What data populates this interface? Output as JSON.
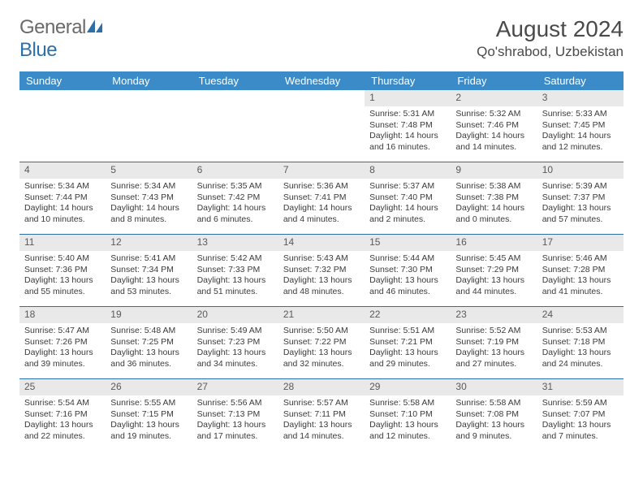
{
  "logo": {
    "text_left": "General",
    "text_right": "Blue"
  },
  "title": "August 2024",
  "location": "Qo'shrabod, Uzbekistan",
  "colors": {
    "header_bg": "#3b8bc8",
    "header_text": "#ffffff",
    "daynum_bg": "#e9e9e9",
    "rule": "#2f6fa8",
    "body_text": "#3a3a3a",
    "logo_gray": "#6a6a6a",
    "logo_blue": "#2f6fa8"
  },
  "typography": {
    "title_fontsize": 28,
    "location_fontsize": 17,
    "head_fontsize": 13,
    "daynum_fontsize": 12,
    "body_fontsize": 10.5
  },
  "day_headers": [
    "Sunday",
    "Monday",
    "Tuesday",
    "Wednesday",
    "Thursday",
    "Friday",
    "Saturday"
  ],
  "weeks": [
    [
      {
        "n": "",
        "sunrise": "",
        "sunset": "",
        "daylight": ""
      },
      {
        "n": "",
        "sunrise": "",
        "sunset": "",
        "daylight": ""
      },
      {
        "n": "",
        "sunrise": "",
        "sunset": "",
        "daylight": ""
      },
      {
        "n": "",
        "sunrise": "",
        "sunset": "",
        "daylight": ""
      },
      {
        "n": "1",
        "sunrise": "Sunrise: 5:31 AM",
        "sunset": "Sunset: 7:48 PM",
        "daylight": "Daylight: 14 hours and 16 minutes."
      },
      {
        "n": "2",
        "sunrise": "Sunrise: 5:32 AM",
        "sunset": "Sunset: 7:46 PM",
        "daylight": "Daylight: 14 hours and 14 minutes."
      },
      {
        "n": "3",
        "sunrise": "Sunrise: 5:33 AM",
        "sunset": "Sunset: 7:45 PM",
        "daylight": "Daylight: 14 hours and 12 minutes."
      }
    ],
    [
      {
        "n": "4",
        "sunrise": "Sunrise: 5:34 AM",
        "sunset": "Sunset: 7:44 PM",
        "daylight": "Daylight: 14 hours and 10 minutes."
      },
      {
        "n": "5",
        "sunrise": "Sunrise: 5:34 AM",
        "sunset": "Sunset: 7:43 PM",
        "daylight": "Daylight: 14 hours and 8 minutes."
      },
      {
        "n": "6",
        "sunrise": "Sunrise: 5:35 AM",
        "sunset": "Sunset: 7:42 PM",
        "daylight": "Daylight: 14 hours and 6 minutes."
      },
      {
        "n": "7",
        "sunrise": "Sunrise: 5:36 AM",
        "sunset": "Sunset: 7:41 PM",
        "daylight": "Daylight: 14 hours and 4 minutes."
      },
      {
        "n": "8",
        "sunrise": "Sunrise: 5:37 AM",
        "sunset": "Sunset: 7:40 PM",
        "daylight": "Daylight: 14 hours and 2 minutes."
      },
      {
        "n": "9",
        "sunrise": "Sunrise: 5:38 AM",
        "sunset": "Sunset: 7:38 PM",
        "daylight": "Daylight: 14 hours and 0 minutes."
      },
      {
        "n": "10",
        "sunrise": "Sunrise: 5:39 AM",
        "sunset": "Sunset: 7:37 PM",
        "daylight": "Daylight: 13 hours and 57 minutes."
      }
    ],
    [
      {
        "n": "11",
        "sunrise": "Sunrise: 5:40 AM",
        "sunset": "Sunset: 7:36 PM",
        "daylight": "Daylight: 13 hours and 55 minutes."
      },
      {
        "n": "12",
        "sunrise": "Sunrise: 5:41 AM",
        "sunset": "Sunset: 7:34 PM",
        "daylight": "Daylight: 13 hours and 53 minutes."
      },
      {
        "n": "13",
        "sunrise": "Sunrise: 5:42 AM",
        "sunset": "Sunset: 7:33 PM",
        "daylight": "Daylight: 13 hours and 51 minutes."
      },
      {
        "n": "14",
        "sunrise": "Sunrise: 5:43 AM",
        "sunset": "Sunset: 7:32 PM",
        "daylight": "Daylight: 13 hours and 48 minutes."
      },
      {
        "n": "15",
        "sunrise": "Sunrise: 5:44 AM",
        "sunset": "Sunset: 7:30 PM",
        "daylight": "Daylight: 13 hours and 46 minutes."
      },
      {
        "n": "16",
        "sunrise": "Sunrise: 5:45 AM",
        "sunset": "Sunset: 7:29 PM",
        "daylight": "Daylight: 13 hours and 44 minutes."
      },
      {
        "n": "17",
        "sunrise": "Sunrise: 5:46 AM",
        "sunset": "Sunset: 7:28 PM",
        "daylight": "Daylight: 13 hours and 41 minutes."
      }
    ],
    [
      {
        "n": "18",
        "sunrise": "Sunrise: 5:47 AM",
        "sunset": "Sunset: 7:26 PM",
        "daylight": "Daylight: 13 hours and 39 minutes."
      },
      {
        "n": "19",
        "sunrise": "Sunrise: 5:48 AM",
        "sunset": "Sunset: 7:25 PM",
        "daylight": "Daylight: 13 hours and 36 minutes."
      },
      {
        "n": "20",
        "sunrise": "Sunrise: 5:49 AM",
        "sunset": "Sunset: 7:23 PM",
        "daylight": "Daylight: 13 hours and 34 minutes."
      },
      {
        "n": "21",
        "sunrise": "Sunrise: 5:50 AM",
        "sunset": "Sunset: 7:22 PM",
        "daylight": "Daylight: 13 hours and 32 minutes."
      },
      {
        "n": "22",
        "sunrise": "Sunrise: 5:51 AM",
        "sunset": "Sunset: 7:21 PM",
        "daylight": "Daylight: 13 hours and 29 minutes."
      },
      {
        "n": "23",
        "sunrise": "Sunrise: 5:52 AM",
        "sunset": "Sunset: 7:19 PM",
        "daylight": "Daylight: 13 hours and 27 minutes."
      },
      {
        "n": "24",
        "sunrise": "Sunrise: 5:53 AM",
        "sunset": "Sunset: 7:18 PM",
        "daylight": "Daylight: 13 hours and 24 minutes."
      }
    ],
    [
      {
        "n": "25",
        "sunrise": "Sunrise: 5:54 AM",
        "sunset": "Sunset: 7:16 PM",
        "daylight": "Daylight: 13 hours and 22 minutes."
      },
      {
        "n": "26",
        "sunrise": "Sunrise: 5:55 AM",
        "sunset": "Sunset: 7:15 PM",
        "daylight": "Daylight: 13 hours and 19 minutes."
      },
      {
        "n": "27",
        "sunrise": "Sunrise: 5:56 AM",
        "sunset": "Sunset: 7:13 PM",
        "daylight": "Daylight: 13 hours and 17 minutes."
      },
      {
        "n": "28",
        "sunrise": "Sunrise: 5:57 AM",
        "sunset": "Sunset: 7:11 PM",
        "daylight": "Daylight: 13 hours and 14 minutes."
      },
      {
        "n": "29",
        "sunrise": "Sunrise: 5:58 AM",
        "sunset": "Sunset: 7:10 PM",
        "daylight": "Daylight: 13 hours and 12 minutes."
      },
      {
        "n": "30",
        "sunrise": "Sunrise: 5:58 AM",
        "sunset": "Sunset: 7:08 PM",
        "daylight": "Daylight: 13 hours and 9 minutes."
      },
      {
        "n": "31",
        "sunrise": "Sunrise: 5:59 AM",
        "sunset": "Sunset: 7:07 PM",
        "daylight": "Daylight: 13 hours and 7 minutes."
      }
    ]
  ]
}
